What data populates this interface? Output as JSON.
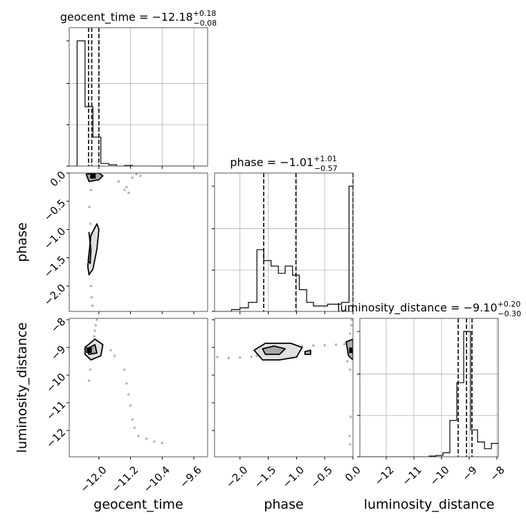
{
  "chart_data": {
    "type": "corner",
    "parameters": [
      {
        "name": "geocent_time",
        "axis_label": "geocent_time",
        "title_prefix": "geocent_time = ",
        "median": "−12.18",
        "plus": "+0.18",
        "minus": "−0.08",
        "range": [
          -12.75,
          -9.25
        ],
        "ticks": [
          {
            "value": -12.0,
            "label": "−12.0"
          },
          {
            "value": -11.2,
            "label": "−11.2"
          },
          {
            "value": -10.4,
            "label": "−10.4"
          },
          {
            "value": -9.6,
            "label": "−9.6"
          }
        ],
        "quantiles": [
          -12.26,
          -12.18,
          -12.0
        ],
        "hist_bin_edges": [
          -12.75,
          -12.55,
          -12.35,
          -12.15,
          -11.95,
          -11.75,
          -11.55,
          -11.35,
          -11.15,
          -10.95,
          -10.75,
          -10.55,
          -10.35,
          -10.15,
          -9.95,
          -9.75,
          -9.55,
          -9.35
        ],
        "hist_counts": [
          0,
          0.95,
          0.45,
          0.22,
          0.02,
          0.01,
          0,
          0.005,
          0,
          0,
          0,
          0,
          0,
          0,
          0,
          0,
          0
        ]
      },
      {
        "name": "phase",
        "axis_label": "phase",
        "title_prefix": "phase = ",
        "median": "−1.01",
        "plus": "+1.01",
        "minus": "−0.57",
        "range": [
          -2.45,
          0.0
        ],
        "ticks": [
          {
            "value": -2.0,
            "label": "−2.0"
          },
          {
            "value": -1.5,
            "label": "−1.5"
          },
          {
            "value": -1.0,
            "label": "−1.0"
          },
          {
            "value": -0.5,
            "label": "−0.5"
          },
          {
            "value": 0.0,
            "label": "0.0"
          }
        ],
        "quantiles": [
          -1.58,
          -1.01,
          0.0
        ],
        "hist_bin_edges": [
          -2.45,
          -2.3,
          -2.15,
          -2.0,
          -1.85,
          -1.7,
          -1.58,
          -1.45,
          -1.32,
          -1.2,
          -1.07,
          -0.95,
          -0.82,
          -0.7,
          -0.57,
          -0.45,
          -0.32,
          -0.2,
          -0.07,
          0.0
        ],
        "hist_counts": [
          0.0,
          0.0,
          0.01,
          0.02,
          0.05,
          0.34,
          0.28,
          0.25,
          0.21,
          0.25,
          0.2,
          0.12,
          0.05,
          0.03,
          0.03,
          0.04,
          0.04,
          0.05,
          0.69
        ]
      },
      {
        "name": "luminosity_distance",
        "axis_label": "luminosity_distance",
        "title_prefix": "luminosity_distance = ",
        "median": "−9.10",
        "plus": "+0.20",
        "minus": "−0.30",
        "range": [
          -12.95,
          -7.95
        ],
        "ticks": [
          {
            "value": -12,
            "label": "−12"
          },
          {
            "value": -11,
            "label": "−11"
          },
          {
            "value": -10,
            "label": "−10"
          },
          {
            "value": -9,
            "label": "−9"
          },
          {
            "value": -8,
            "label": "−8"
          }
        ],
        "quantiles": [
          -9.4,
          -9.1,
          -8.9
        ],
        "hist_bin_edges": [
          -12.95,
          -12.7,
          -12.45,
          -12.2,
          -11.95,
          -11.7,
          -11.45,
          -11.2,
          -10.95,
          -10.7,
          -10.45,
          -10.2,
          -9.95,
          -9.7,
          -9.45,
          -9.2,
          -8.95,
          -8.7,
          -8.45,
          -8.2,
          -7.95
        ],
        "hist_counts": [
          0,
          0,
          0,
          0,
          0,
          0,
          0,
          0,
          0,
          0,
          0.005,
          0.01,
          0.03,
          0.27,
          0.55,
          0.93,
          0.2,
          0.11,
          0.06,
          0.1
        ]
      }
    ],
    "pairs": [
      {
        "x": "geocent_time",
        "y": "phase",
        "points": [
          [
            -12.22,
            -0.05
          ],
          [
            -12.18,
            -0.02
          ],
          [
            -12.25,
            -0.1
          ],
          [
            -12.2,
            -0.3
          ],
          [
            -12.24,
            -0.6
          ],
          [
            -12.21,
            -0.9
          ],
          [
            -12.15,
            -1.1
          ],
          [
            -12.2,
            -1.3
          ],
          [
            -12.22,
            -1.6
          ],
          [
            -12.24,
            -1.75
          ],
          [
            -12.2,
            -2.0
          ],
          [
            -12.18,
            -2.2
          ],
          [
            -12.16,
            -2.35
          ],
          [
            -11.35,
            -0.3
          ],
          [
            -11.25,
            -0.35
          ],
          [
            -11.15,
            -0.08
          ],
          [
            -11.05,
            -0.02
          ],
          [
            -10.95,
            -0.05
          ],
          [
            -11.5,
            -0.15
          ],
          [
            -11.3,
            -0.25
          ]
        ],
        "contours": [
          [
            [
              -12.28,
              -1.65
            ],
            [
              -12.2,
              -1.1
            ],
            [
              -12.05,
              -0.9
            ],
            [
              -12.0,
              -1.0
            ],
            [
              -12.05,
              -1.35
            ],
            [
              -12.15,
              -1.7
            ],
            [
              -12.25,
              -1.8
            ]
          ],
          [
            [
              -12.27,
              -1.55
            ],
            [
              -12.22,
              -1.25
            ],
            [
              -12.25,
              -1.05
            ],
            [
              -12.2,
              -1.35
            ],
            [
              -12.22,
              -1.6
            ]
          ],
          [
            [
              -12.32,
              -0.02
            ],
            [
              -12.0,
              -0.0
            ],
            [
              -11.9,
              -0.05
            ],
            [
              -12.0,
              -0.12
            ],
            [
              -12.25,
              -0.15
            ]
          ]
        ],
        "peak": [
          -12.15,
          -0.05
        ]
      },
      {
        "x": "geocent_time",
        "y": "luminosity_distance",
        "points": [
          [
            -12.05,
            -8.0
          ],
          [
            -12.08,
            -8.2
          ],
          [
            -12.1,
            -8.4
          ],
          [
            -12.12,
            -8.6
          ],
          [
            -12.15,
            -8.8
          ],
          [
            -12.2,
            -9.4
          ],
          [
            -12.22,
            -9.8
          ],
          [
            -12.25,
            -10.2
          ],
          [
            -11.7,
            -9.1
          ],
          [
            -11.6,
            -9.3
          ],
          [
            -11.35,
            -9.8
          ],
          [
            -11.3,
            -10.3
          ],
          [
            -11.25,
            -10.7
          ],
          [
            -11.2,
            -11.1
          ],
          [
            -11.15,
            -11.6
          ],
          [
            -11.1,
            -11.9
          ],
          [
            -11.0,
            -12.2
          ],
          [
            -10.8,
            -12.3
          ],
          [
            -10.6,
            -12.4
          ],
          [
            -10.4,
            -12.45
          ]
        ],
        "contours": [
          [
            [
              -12.35,
              -9.0
            ],
            [
              -12.1,
              -8.7
            ],
            [
              -11.9,
              -8.9
            ],
            [
              -11.95,
              -9.3
            ],
            [
              -12.2,
              -9.45
            ],
            [
              -12.35,
              -9.25
            ]
          ],
          [
            [
              -12.3,
              -9.05
            ],
            [
              -12.1,
              -8.9
            ],
            [
              -12.05,
              -9.2
            ],
            [
              -12.25,
              -9.25
            ]
          ]
        ],
        "peak": [
          -12.25,
          -9.1
        ]
      },
      {
        "x": "phase",
        "y": "luminosity_distance",
        "points": [
          [
            -2.4,
            -9.35
          ],
          [
            -2.2,
            -9.38
          ],
          [
            -2.0,
            -9.36
          ],
          [
            -1.8,
            -9.34
          ],
          [
            -1.7,
            -9.3
          ],
          [
            -0.9,
            -8.95
          ],
          [
            -0.7,
            -8.93
          ],
          [
            -0.5,
            -8.92
          ],
          [
            -0.3,
            -8.9
          ],
          [
            -0.15,
            -8.88
          ],
          [
            -0.05,
            -8.5
          ],
          [
            -0.03,
            -8.2
          ],
          [
            -0.02,
            -8.0
          ],
          [
            -0.1,
            -9.5
          ],
          [
            -0.05,
            -9.8
          ],
          [
            -0.04,
            -11.5
          ],
          [
            -0.06,
            -12.2
          ],
          [
            -0.05,
            -12.5
          ]
        ],
        "contours": [
          [
            [
              -1.75,
              -9.1
            ],
            [
              -1.55,
              -8.85
            ],
            [
              -1.1,
              -8.85
            ],
            [
              -0.9,
              -9.0
            ],
            [
              -1.0,
              -9.35
            ],
            [
              -1.3,
              -9.45
            ],
            [
              -1.6,
              -9.45
            ]
          ],
          [
            [
              -1.6,
              -9.05
            ],
            [
              -1.4,
              -8.95
            ],
            [
              -1.2,
              -9.05
            ],
            [
              -1.3,
              -9.25
            ],
            [
              -1.55,
              -9.25
            ]
          ],
          [
            [
              -0.85,
              -9.15
            ],
            [
              -0.75,
              -9.1
            ],
            [
              -0.75,
              -9.25
            ],
            [
              -0.85,
              -9.25
            ]
          ],
          [
            [
              -0.12,
              -8.8
            ],
            [
              0.0,
              -8.7
            ],
            [
              0.0,
              -9.45
            ],
            [
              -0.08,
              -9.3
            ]
          ]
        ],
        "peak": [
          -0.02,
          -9.1
        ]
      }
    ]
  }
}
